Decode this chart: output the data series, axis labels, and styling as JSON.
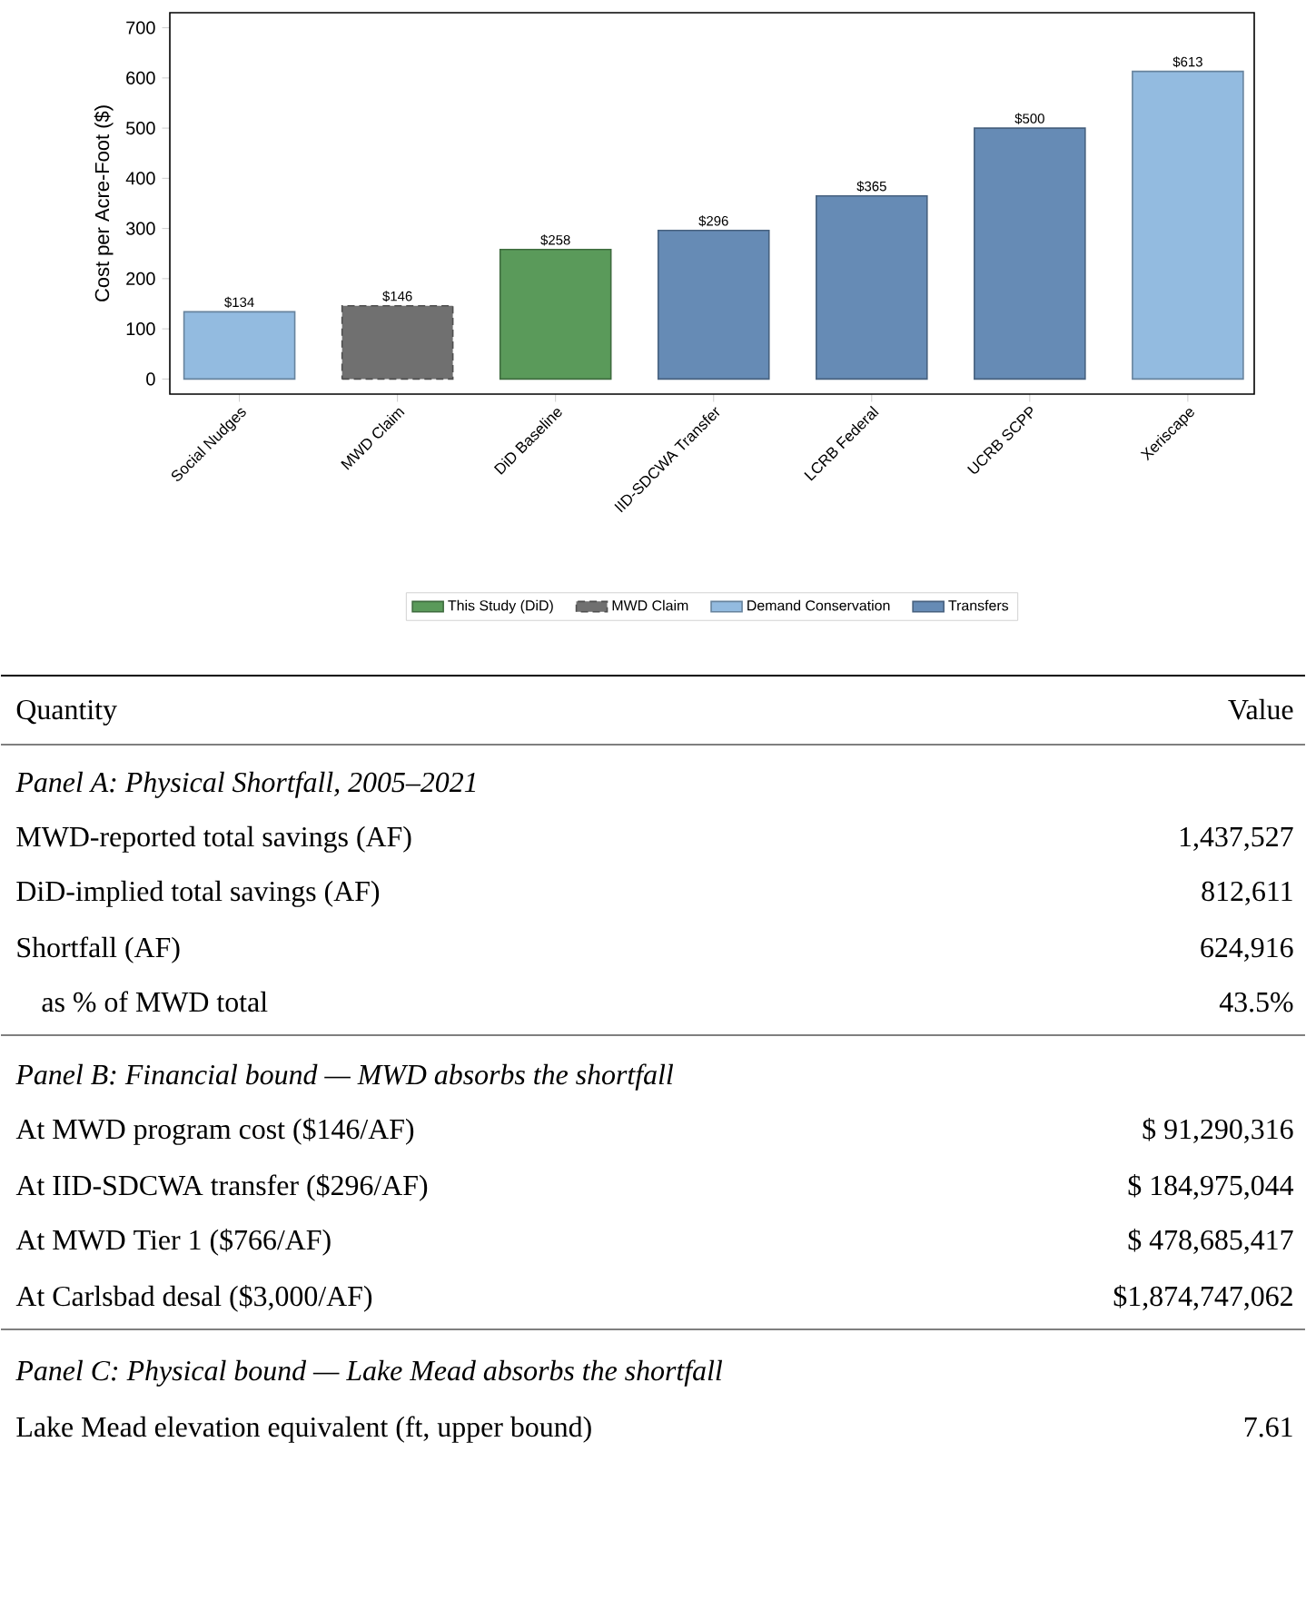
{
  "chart_data": {
    "type": "bar",
    "ylabel": "Cost per Acre-Foot ($)",
    "categories": [
      "Social Nudges",
      "MWD Claim",
      "DiD Baseline",
      "IID-SDCWA Transfer",
      "LCRB Federal",
      "UCRB SCPP",
      "Xeriscape"
    ],
    "series": [
      {
        "name": "This Study (DiD)",
        "color": "#5a9a5a",
        "values": [
          null,
          null,
          258,
          null,
          null,
          null,
          null
        ],
        "value_labels": [
          null,
          null,
          "$258",
          null,
          null,
          null,
          null
        ]
      },
      {
        "name": "MWD Claim",
        "color": "#707070",
        "line_style": "dashed",
        "values": [
          null,
          146,
          null,
          null,
          null,
          null,
          null
        ],
        "value_labels": [
          null,
          "$146",
          null,
          null,
          null,
          null,
          null
        ]
      },
      {
        "name": "Demand Conservation",
        "color": "#93bbe0",
        "values": [
          134,
          null,
          null,
          null,
          null,
          null,
          613
        ],
        "value_labels": [
          "$134",
          null,
          null,
          null,
          null,
          null,
          "$613"
        ]
      },
      {
        "name": "Transfers",
        "color": "#668bb5",
        "values": [
          null,
          null,
          null,
          296,
          365,
          500,
          null
        ],
        "value_labels": [
          null,
          null,
          null,
          "$296",
          "$365",
          "$500",
          null
        ]
      }
    ],
    "ylim": [
      -30,
      730
    ],
    "yticks": [
      0,
      100,
      200,
      300,
      400,
      500,
      600,
      700
    ],
    "grid": false,
    "legend": "bottom",
    "annotations": [
      "Quantity",
      "Value",
      "Panel A: Physical Shortfall, 2005–2021",
      "MWD-reported total savings (AF)",
      "1,437,527",
      "DiD-implied total savings (AF)",
      "812,611",
      "Shortfall (AF)",
      "624,916",
      "as % of MWD total",
      "43.5%",
      "Panel B: Financial bound — MWD absorbs the shortfall",
      "At MWD program cost ($146/AF)",
      "$ 91,290,316",
      "At IID-SDCWA transfer ($296/AF)",
      "$ 184,975,044",
      "At MWD Tier 1 ($766/AF)",
      "$ 478,685,417",
      "At Carlsbad desal ($3,000/AF)",
      "$1,874,747,062",
      "Panel C: Physical bound — Lake Mead absorbs the shortfall",
      "Lake Mead elevation equivalent (ft, upper bound)",
      "7.61"
    ]
  }
}
